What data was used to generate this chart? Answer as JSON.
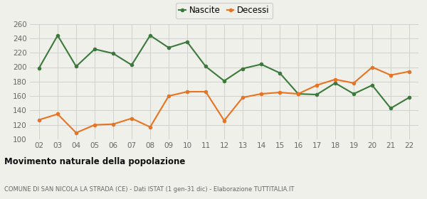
{
  "years": [
    "02",
    "03",
    "04",
    "05",
    "06",
    "07",
    "08",
    "09",
    "10",
    "11",
    "12",
    "13",
    "14",
    "15",
    "16",
    "17",
    "18",
    "19",
    "20",
    "21",
    "22"
  ],
  "nascite": [
    199,
    244,
    201,
    225,
    219,
    203,
    244,
    227,
    235,
    201,
    181,
    198,
    204,
    192,
    163,
    162,
    178,
    163,
    175,
    143,
    158
  ],
  "decessi": [
    127,
    135,
    109,
    120,
    121,
    129,
    117,
    160,
    166,
    166,
    126,
    158,
    163,
    165,
    163,
    175,
    183,
    178,
    200,
    189,
    194
  ],
  "nascite_color": "#3a7a3a",
  "decessi_color": "#e87320",
  "background_color": "#f0f0eb",
  "grid_color": "#cccccc",
  "ylim": [
    100,
    260
  ],
  "yticks": [
    100,
    120,
    140,
    160,
    180,
    200,
    220,
    240,
    260
  ],
  "title": "Movimento naturale della popolazione",
  "subtitle": "COMUNE DI SAN NICOLA LA STRADA (CE) - Dati ISTAT (1 gen-31 dic) - Elaborazione TUTTITALIA.IT",
  "legend_nascite": "Nascite",
  "legend_decessi": "Decessi",
  "marker_size": 4,
  "line_width": 1.5
}
